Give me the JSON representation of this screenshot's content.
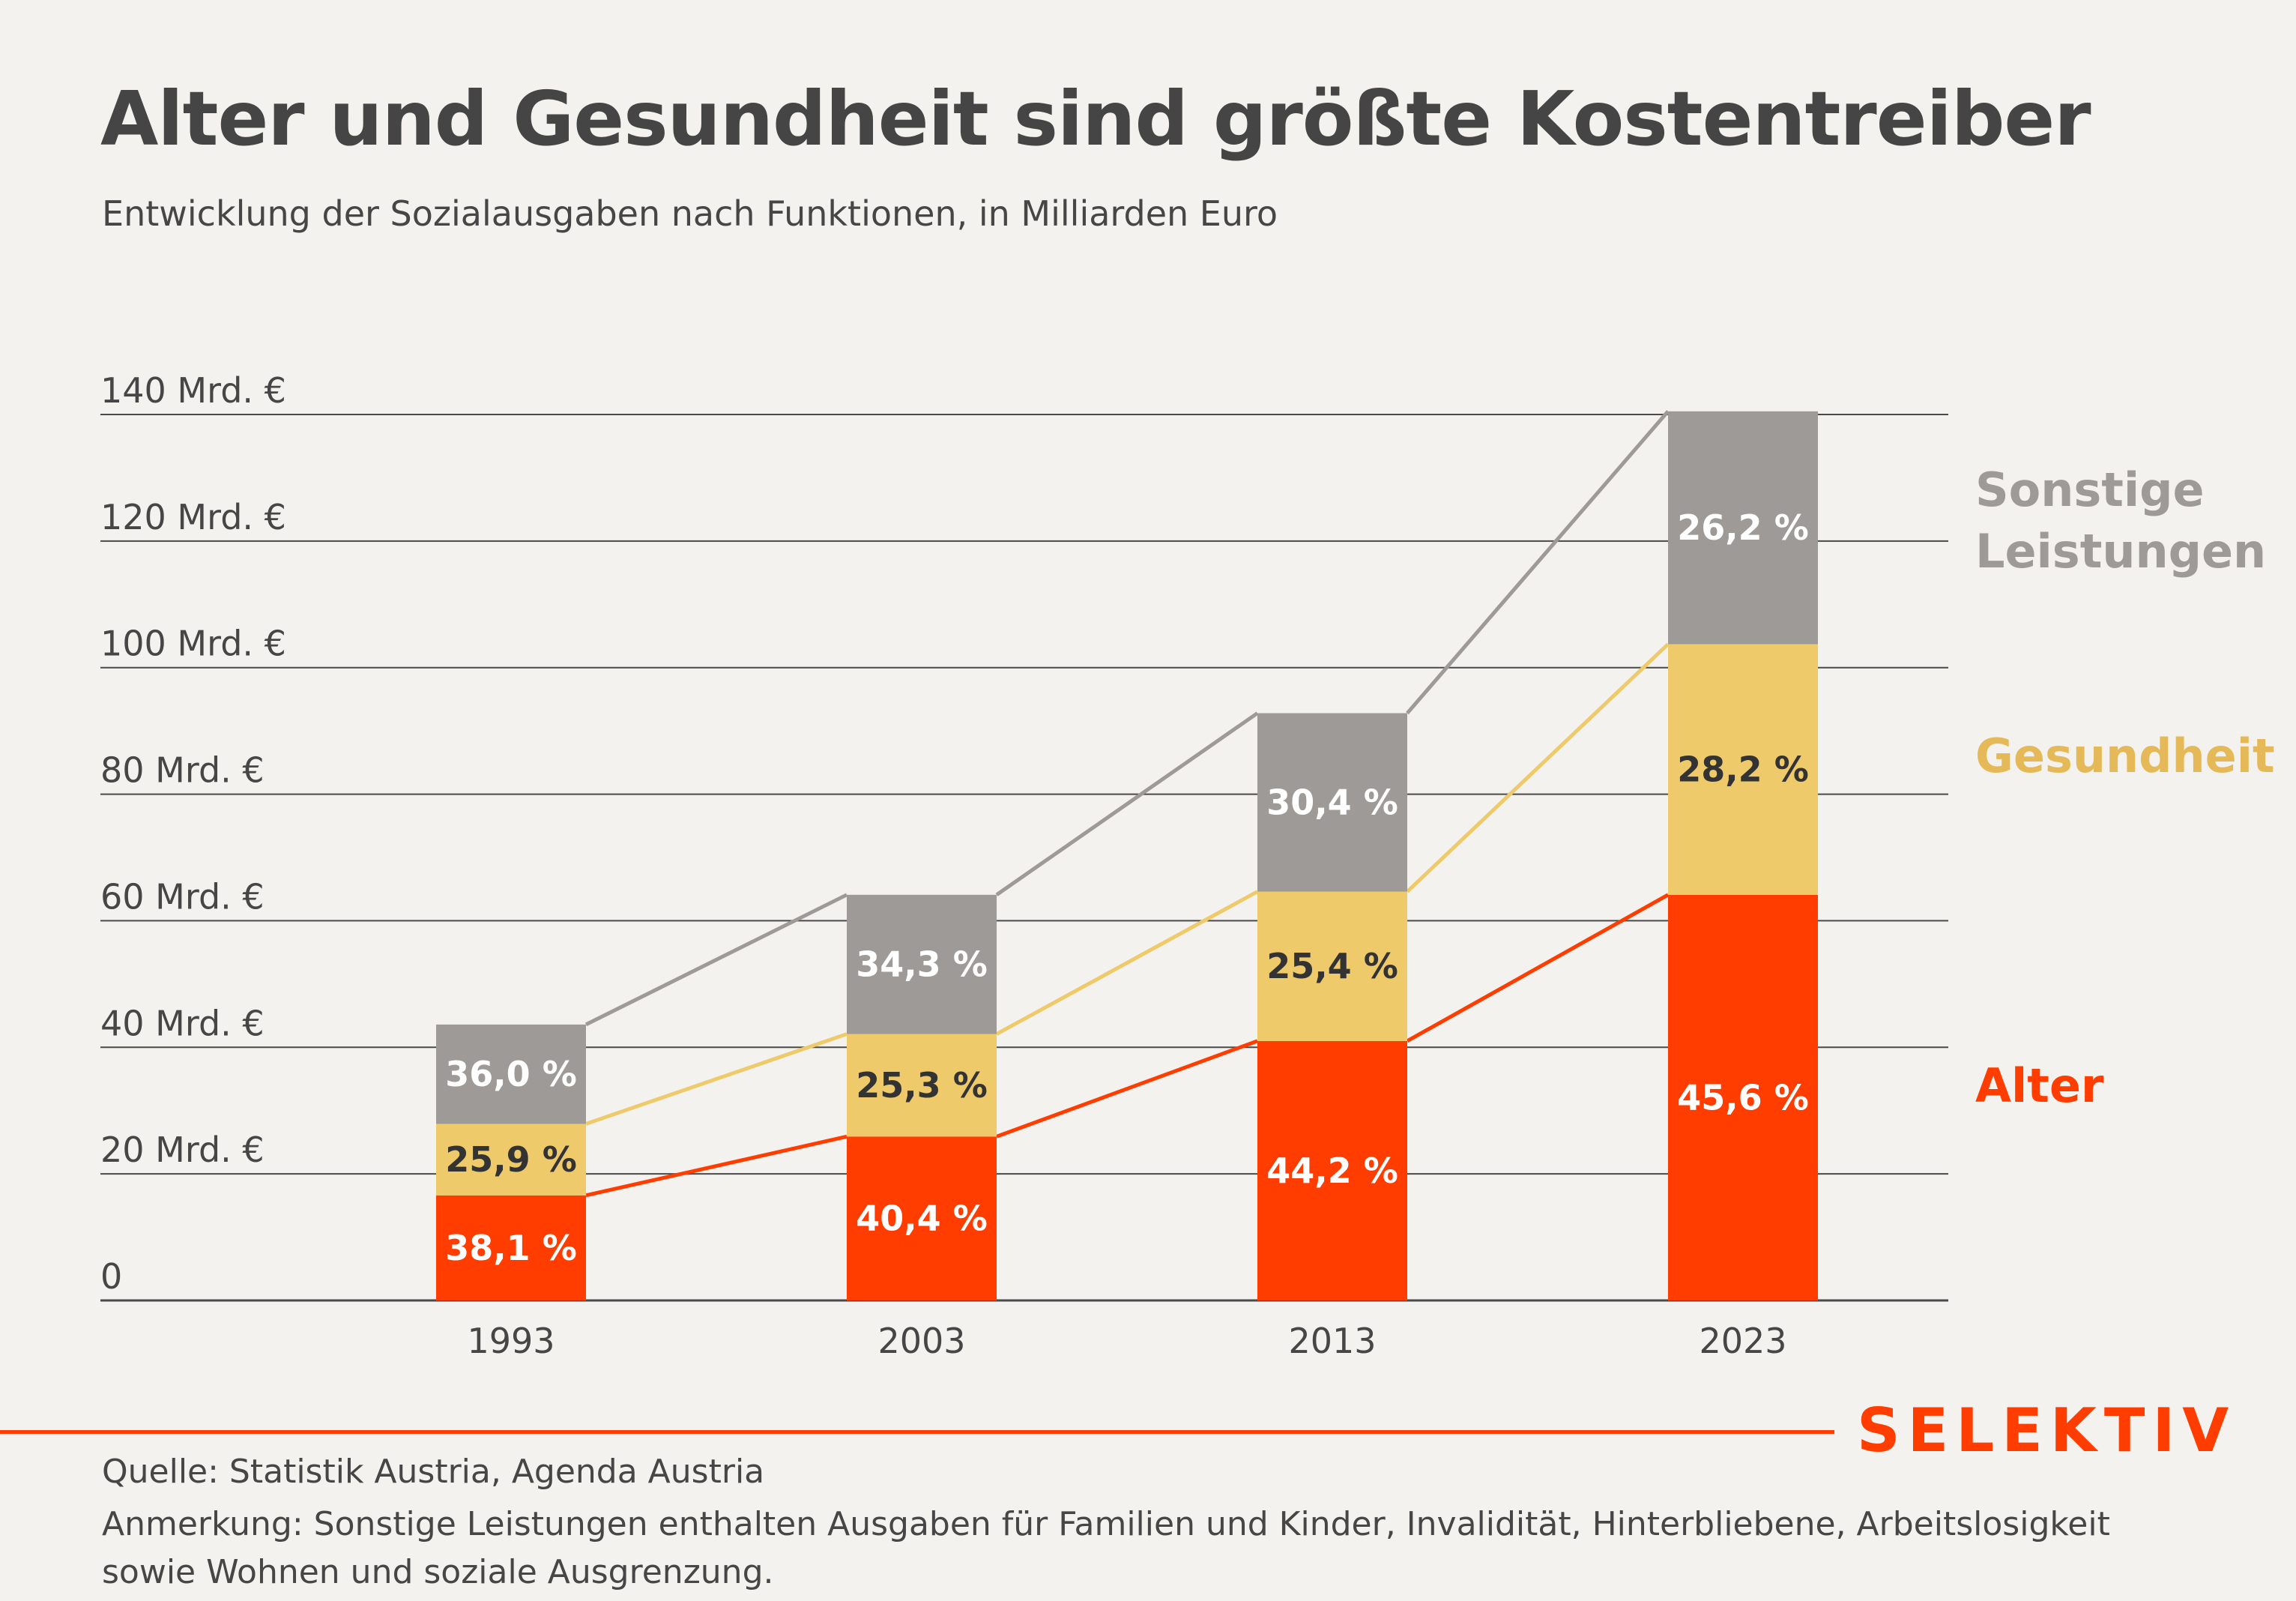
{
  "header": {
    "title": "Alter und Gesundheit sind größte Kostentreiber",
    "subtitle": "Entwicklung der Sozialausgaben nach Funktionen, in Milliarden Euro"
  },
  "footer": {
    "brand": "SELEKTIV",
    "source": "Quelle: Statistik Austria, Agenda Austria",
    "note": "Anmerkung: Sonstige Leistungen enthalten Ausgaben für Familien und Kinder, Invalidität, Hinterbliebene, Arbeitslosigkeit sowie Wohnen und soziale Ausgrenzung.",
    "accent_color": "#ff3d00"
  },
  "chart_data": {
    "type": "bar",
    "stacked": true,
    "title": "Alter und Gesundheit sind größte Kostentreiber",
    "subtitle": "Entwicklung der Sozialausgaben nach Funktionen, in Milliarden Euro",
    "xlabel": "",
    "ylabel": "",
    "categories": [
      "1993",
      "2003",
      "2013",
      "2023"
    ],
    "ylim": [
      0,
      140
    ],
    "yticks": [
      0,
      20,
      40,
      60,
      80,
      100,
      120,
      140
    ],
    "ytick_labels": [
      "0",
      "20 Mrd. €",
      "40 Mrd. €",
      "60 Mrd. €",
      "80 Mrd. €",
      "100 Mrd. €",
      "120 Mrd. €",
      "140 Mrd. €"
    ],
    "grid": true,
    "legend_position": "right",
    "connector_lines": true,
    "series": [
      {
        "name": "Alter",
        "color": "#ff3d00",
        "label_color": "#ffffff",
        "values": [
          16.6,
          25.9,
          41.0,
          64.1
        ],
        "share_labels": [
          "38,1 %",
          "40,4 %",
          "44,2 %",
          "45,6 %"
        ]
      },
      {
        "name": "Gesundheit",
        "color": "#efca6b",
        "legend_color": "#e5b957",
        "label_color": "#333333",
        "values": [
          11.3,
          16.2,
          23.6,
          39.6
        ],
        "share_labels": [
          "25,9 %",
          "25,3 %",
          "25,4 %",
          "28,2 %"
        ]
      },
      {
        "name": "Sonstige Leistungen",
        "legend_lines": [
          "Sonstige",
          "Leistungen"
        ],
        "color": "#9e9a97",
        "label_color": "#ffffff",
        "values": [
          15.7,
          22.0,
          28.2,
          36.8
        ],
        "share_labels": [
          "36,0 %",
          "34,3 %",
          "30,4 %",
          "26,2 %"
        ]
      }
    ]
  }
}
